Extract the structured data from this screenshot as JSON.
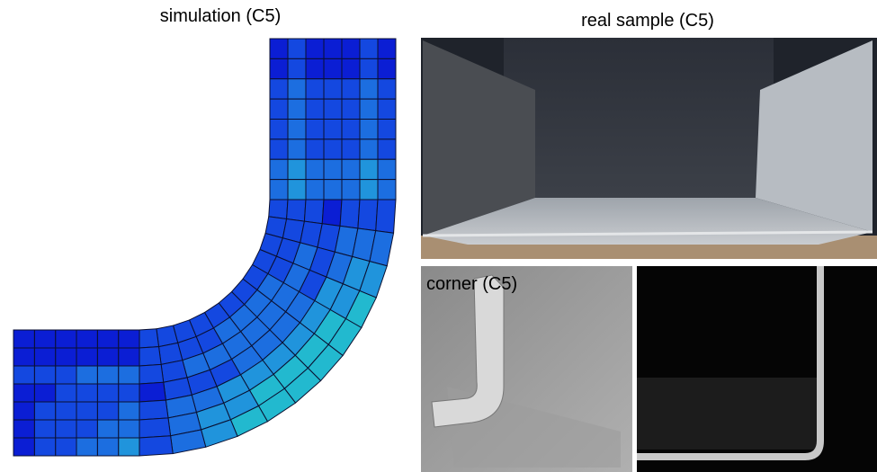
{
  "panels": {
    "simulation": {
      "title": "simulation (C5)"
    },
    "real_sample": {
      "title": "real sample (C5)"
    },
    "corner": {
      "label": "corner (C5)"
    }
  }
}
